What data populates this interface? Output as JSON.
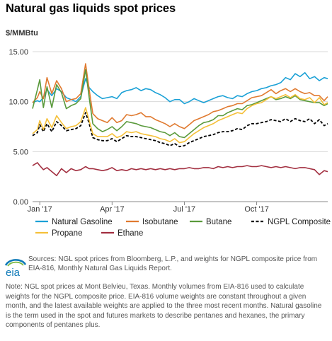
{
  "header": {
    "title": "Natural gas liquids spot prices",
    "units": "$/MMBtu"
  },
  "sources": "Sources: NGL spot prices from Bloomberg, L.P., and weights for NGPL composite price from EIA-816, Monthly Natural Gas Liquids Report.",
  "note": "Note: NGL spot prices at Mont Belvieu, Texas. Monthly volumes from EIA-816 used to calculate weights for the NGPL composite price. EIA-816 volume weights are constant throughout a given month, and the latest available weights are applied to the three most recent months. Natural gasoline is the term used in the spot and futures markets to describe pentanes and hexanes, the primary components of pentanes plus.",
  "logo": {
    "text": "eia"
  },
  "chart_data": {
    "type": "line",
    "title": "Natural gas liquids spot prices",
    "ylabel": "$/MMBtu",
    "ylim": [
      0,
      15
    ],
    "yticks": [
      "15.00",
      "10.00",
      "5.00",
      "0.00"
    ],
    "grid": true,
    "legend_position": "bottom",
    "xtick_labels": [
      "Jan '17",
      "Apr '17",
      "Jul '17",
      "Oct '17"
    ],
    "xtick_months": [
      1,
      4,
      7,
      10
    ],
    "x_range_months": [
      0.7,
      12.95
    ],
    "x_months": [
      0.7,
      0.9,
      1.0,
      1.15,
      1.3,
      1.5,
      1.7,
      1.9,
      2.1,
      2.3,
      2.5,
      2.7,
      2.9,
      3.05,
      3.2,
      3.4,
      3.6,
      3.8,
      4.0,
      4.2,
      4.4,
      4.6,
      4.8,
      5.0,
      5.2,
      5.4,
      5.6,
      5.8,
      6.0,
      6.2,
      6.4,
      6.6,
      6.8,
      7.0,
      7.2,
      7.4,
      7.6,
      7.8,
      8.0,
      8.2,
      8.4,
      8.6,
      8.8,
      9.0,
      9.2,
      9.4,
      9.6,
      9.8,
      10.0,
      10.2,
      10.4,
      10.6,
      10.8,
      11.0,
      11.2,
      11.4,
      11.6,
      11.8,
      12.0,
      12.2,
      12.4,
      12.6,
      12.8,
      12.95
    ],
    "series": [
      {
        "name": "Natural Gasoline",
        "color": "#1ba1d6",
        "values": [
          9.9,
          10.1,
          10.0,
          10.4,
          11.2,
          10.6,
          11.3,
          11.0,
          10.4,
          10.2,
          10.0,
          10.5,
          12.3,
          11.4,
          11.0,
          10.6,
          10.3,
          10.4,
          10.5,
          10.3,
          10.9,
          11.1,
          11.2,
          11.4,
          11.1,
          11.3,
          11.2,
          10.9,
          10.7,
          10.4,
          10.0,
          10.2,
          10.2,
          9.8,
          10.0,
          10.3,
          10.1,
          9.9,
          10.1,
          10.3,
          10.5,
          10.6,
          10.4,
          10.3,
          10.6,
          10.5,
          10.8,
          11.0,
          11.1,
          11.3,
          11.4,
          11.6,
          11.7,
          11.9,
          12.4,
          12.2,
          12.8,
          12.5,
          12.9,
          12.3,
          12.5,
          12.1,
          12.4,
          12.3
        ]
      },
      {
        "name": "Isobutane",
        "color": "#e07a30",
        "values": [
          9.9,
          10.4,
          11.0,
          10.3,
          12.4,
          10.8,
          12.1,
          11.3,
          10.0,
          10.2,
          10.3,
          10.8,
          13.8,
          11.2,
          8.8,
          8.3,
          8.1,
          7.9,
          8.4,
          7.9,
          8.1,
          8.7,
          8.6,
          8.7,
          8.9,
          8.5,
          8.5,
          8.2,
          8.0,
          7.8,
          7.5,
          7.8,
          7.5,
          7.3,
          7.7,
          8.1,
          8.3,
          8.5,
          8.7,
          9.0,
          9.1,
          9.3,
          9.5,
          9.6,
          9.8,
          9.8,
          10.1,
          10.4,
          10.5,
          10.6,
          10.9,
          11.2,
          10.8,
          11.1,
          11.3,
          11.0,
          11.3,
          11.0,
          10.8,
          10.9,
          10.6,
          10.6,
          10.1,
          10.5
        ]
      },
      {
        "name": "Butane",
        "color": "#5a9a3c",
        "values": [
          9.3,
          11.2,
          12.2,
          9.4,
          11.5,
          9.4,
          11.7,
          10.9,
          9.3,
          9.6,
          9.8,
          10.3,
          13.2,
          10.4,
          7.8,
          7.3,
          7.0,
          7.2,
          7.5,
          7.1,
          7.5,
          8.0,
          7.9,
          7.8,
          7.6,
          7.5,
          7.4,
          7.2,
          7.0,
          6.9,
          6.6,
          6.9,
          6.5,
          6.4,
          6.8,
          7.2,
          7.6,
          7.9,
          8.0,
          8.2,
          8.6,
          8.6,
          8.9,
          9.1,
          9.3,
          9.2,
          9.6,
          9.7,
          9.9,
          10.1,
          10.3,
          10.5,
          10.2,
          10.3,
          10.5,
          10.3,
          10.6,
          10.2,
          10.1,
          10.0,
          9.9,
          9.9,
          9.6,
          9.8
        ]
      },
      {
        "name": "NGPL Composite",
        "color": "#000000",
        "dashed": true,
        "values": [
          6.6,
          6.9,
          7.7,
          7.0,
          7.8,
          7.0,
          8.0,
          7.6,
          7.1,
          7.2,
          7.3,
          7.6,
          8.9,
          7.8,
          6.4,
          6.2,
          6.1,
          6.1,
          6.3,
          6.0,
          6.3,
          6.6,
          6.5,
          6.5,
          6.4,
          6.3,
          6.2,
          6.1,
          5.9,
          5.8,
          5.6,
          5.8,
          5.5,
          5.6,
          5.9,
          6.1,
          6.3,
          6.5,
          6.6,
          6.7,
          6.9,
          7.0,
          7.0,
          7.1,
          7.3,
          7.2,
          7.6,
          7.8,
          7.8,
          7.9,
          8.0,
          8.2,
          8.1,
          8.0,
          8.3,
          8.0,
          8.3,
          8.1,
          8.0,
          8.3,
          7.8,
          8.2,
          7.6,
          7.8
        ]
      },
      {
        "name": "Propane",
        "color": "#f5c039",
        "values": [
          6.8,
          7.2,
          8.1,
          7.2,
          8.3,
          7.4,
          8.6,
          7.9,
          7.3,
          7.5,
          7.6,
          8.0,
          9.4,
          8.1,
          6.8,
          6.5,
          6.5,
          6.5,
          6.8,
          6.4,
          6.6,
          7.0,
          6.9,
          7.0,
          6.8,
          6.7,
          6.6,
          6.5,
          6.3,
          6.2,
          6.0,
          6.3,
          5.9,
          6.0,
          6.4,
          6.8,
          7.1,
          7.4,
          7.6,
          7.8,
          8.1,
          8.3,
          8.5,
          8.7,
          8.9,
          8.8,
          9.3,
          9.6,
          9.8,
          9.9,
          10.2,
          10.5,
          10.3,
          10.5,
          10.7,
          10.4,
          10.7,
          10.3,
          10.2,
          10.4,
          9.9,
          10.4,
          9.7,
          9.9
        ]
      },
      {
        "name": "Ethane",
        "color": "#a22f40",
        "values": [
          3.6,
          3.9,
          3.6,
          3.2,
          3.4,
          3.0,
          2.6,
          3.3,
          2.9,
          3.3,
          3.1,
          3.2,
          3.5,
          3.3,
          3.3,
          3.2,
          3.1,
          3.2,
          3.4,
          3.1,
          3.2,
          3.1,
          3.3,
          3.2,
          3.3,
          3.2,
          3.3,
          3.2,
          3.3,
          3.2,
          3.3,
          3.2,
          3.3,
          3.3,
          3.4,
          3.3,
          3.3,
          3.4,
          3.4,
          3.3,
          3.5,
          3.4,
          3.5,
          3.4,
          3.5,
          3.5,
          3.6,
          3.5,
          3.5,
          3.6,
          3.5,
          3.4,
          3.5,
          3.4,
          3.5,
          3.4,
          3.3,
          3.4,
          3.4,
          3.3,
          3.2,
          2.7,
          3.1,
          3.0
        ]
      }
    ]
  }
}
